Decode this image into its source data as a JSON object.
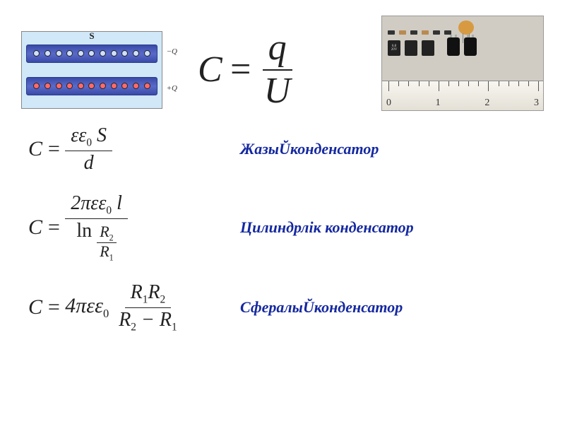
{
  "main_formula": {
    "lhs": "C",
    "eq": "=",
    "num": "q",
    "den": "U"
  },
  "diagram": {
    "s_label": "S",
    "neg_q": "−Q",
    "pos_q": "+Q",
    "charge_count": 11,
    "bg_color": "#d0e8f8",
    "plate_color": "#4a5ab8"
  },
  "photo": {
    "ruler_numbers": [
      "0",
      "1",
      "2",
      "3"
    ],
    "tantalum_labels": [
      "6.8",
      "20V"
    ],
    "tick_major_positions_pct": [
      4,
      35,
      66,
      97
    ],
    "tick_minor_per_major": 4
  },
  "rows": [
    {
      "lhs": "C",
      "eq": "=",
      "num_html": "εε<sub class='sub'>0</sub> S",
      "den_html": "d",
      "label": "ЖазыŬконденсатор"
    },
    {
      "lhs": "C",
      "eq": "=",
      "num_html": "2πεε<sub class='sub'>0</sub> l",
      "den_inner_num": "R<sub class='sub'>2</sub>",
      "den_inner_den": "R<sub class='sub'>1</sub>",
      "den_prefix": "ln",
      "label": "Цилиндрлік конденсатор"
    },
    {
      "lhs": "C",
      "eq": "=",
      "coef_html": "4πεε<sub class='sub'>0</sub>",
      "num_html": "R<sub class='sub'>1</sub>R<sub class='sub'>2</sub>",
      "den_html": "R<sub class='sub'>2</sub> − R<sub class='sub'>1</sub>",
      "label": "СфералыŬконденсатор"
    }
  ],
  "colors": {
    "label_color": "#1428a0",
    "text_color": "#222222",
    "background": "#ffffff"
  },
  "typography": {
    "main_formula_size_pt": 39,
    "row_formula_size_pt": 22,
    "label_size_pt": 16,
    "font_family": "Times New Roman"
  }
}
